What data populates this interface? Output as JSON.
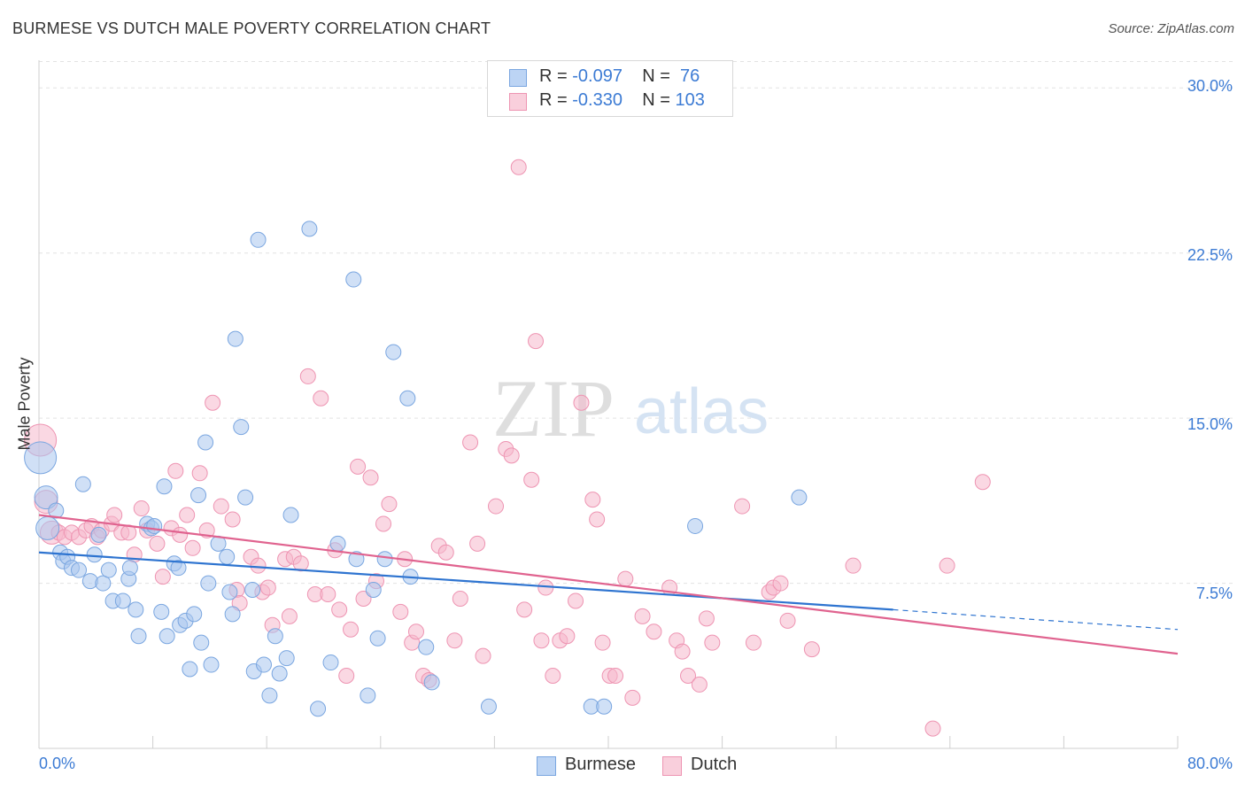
{
  "title": "BURMESE VS DUTCH MALE POVERTY CORRELATION CHART",
  "source": "Source: ZipAtlas.com",
  "watermark": {
    "zip": "ZIP",
    "atlas": "atlas"
  },
  "legend": {
    "rows": [
      {
        "r_label": "R = ",
        "r_value": "-0.097",
        "n_label": "N = ",
        "n_value": " 76"
      },
      {
        "r_label": "R = ",
        "r_value": "-0.330",
        "n_label": "N = ",
        "n_value": "103"
      }
    ]
  },
  "colors": {
    "burmese_fill": "#a9c7ef",
    "burmese_stroke": "#7aa6e0",
    "burmese_line": "#2e74d0",
    "dutch_fill": "#f5b8cc",
    "dutch_stroke": "#ee94b2",
    "dutch_line": "#e0638f",
    "axis_label": "#3c7bd4",
    "grid": "#e2e2e2"
  },
  "chart_data": {
    "type": "scatter",
    "title": "BURMESE VS DUTCH MALE POVERTY CORRELATION CHART",
    "xlabel": "",
    "ylabel": "Male Poverty",
    "xlim": [
      0,
      80
    ],
    "ylim": [
      0,
      31.5
    ],
    "x_tick_labels": [
      "0.0%",
      "80.0%"
    ],
    "y_tick_labels": [
      "7.5%",
      "15.0%",
      "22.5%",
      "30.0%"
    ],
    "y_ticks": [
      7.5,
      15.0,
      22.5,
      30.0
    ],
    "grid": true,
    "legend_position": "top-center",
    "bottom_legend": [
      "Burmese",
      "Dutch"
    ],
    "series": [
      {
        "name": "Burmese",
        "r": -0.097,
        "n": 76,
        "trend": {
          "x0": 0,
          "y0": 8.9,
          "x1": 60,
          "y1": 6.3,
          "dashed_to": 80,
          "dashed_y": 5.4
        },
        "points": [
          [
            0.1,
            13.2,
            3
          ],
          [
            0.5,
            11.4,
            2
          ],
          [
            0.6,
            10.0,
            2
          ],
          [
            1.2,
            10.8,
            1
          ],
          [
            1.5,
            8.9,
            1
          ],
          [
            1.7,
            8.5,
            1
          ],
          [
            2.0,
            8.7,
            1
          ],
          [
            2.3,
            8.2,
            1
          ],
          [
            2.8,
            8.1,
            1
          ],
          [
            3.1,
            12.0,
            1
          ],
          [
            3.6,
            7.6,
            1
          ],
          [
            3.9,
            8.8,
            1
          ],
          [
            4.2,
            9.7,
            1
          ],
          [
            4.5,
            7.5,
            1
          ],
          [
            4.9,
            8.1,
            1
          ],
          [
            5.2,
            6.7,
            1
          ],
          [
            5.9,
            6.7,
            1
          ],
          [
            6.3,
            7.7,
            1
          ],
          [
            6.4,
            8.2,
            1
          ],
          [
            6.8,
            6.3,
            1
          ],
          [
            7.0,
            5.1,
            1
          ],
          [
            7.6,
            10.2,
            1
          ],
          [
            7.9,
            10.0,
            1
          ],
          [
            8.1,
            10.1,
            1
          ],
          [
            8.6,
            6.2,
            1
          ],
          [
            8.8,
            11.9,
            1
          ],
          [
            9.0,
            5.1,
            1
          ],
          [
            9.5,
            8.4,
            1
          ],
          [
            9.8,
            8.2,
            1
          ],
          [
            9.9,
            5.6,
            1
          ],
          [
            10.3,
            5.8,
            1
          ],
          [
            10.6,
            3.6,
            1
          ],
          [
            10.9,
            6.1,
            1
          ],
          [
            11.2,
            11.5,
            1
          ],
          [
            11.4,
            4.8,
            1
          ],
          [
            11.7,
            13.9,
            1
          ],
          [
            11.9,
            7.5,
            1
          ],
          [
            12.1,
            3.8,
            1
          ],
          [
            12.6,
            9.3,
            1
          ],
          [
            13.2,
            8.7,
            1
          ],
          [
            13.4,
            7.1,
            1
          ],
          [
            13.6,
            6.1,
            1
          ],
          [
            13.8,
            18.6,
            1
          ],
          [
            14.2,
            14.6,
            1
          ],
          [
            14.5,
            11.4,
            1
          ],
          [
            15.0,
            7.2,
            1
          ],
          [
            15.1,
            3.5,
            1
          ],
          [
            15.4,
            23.1,
            1
          ],
          [
            15.8,
            3.8,
            1
          ],
          [
            16.2,
            2.4,
            1
          ],
          [
            16.6,
            5.1,
            1
          ],
          [
            16.9,
            3.4,
            1
          ],
          [
            17.4,
            4.1,
            1
          ],
          [
            17.7,
            10.6,
            1
          ],
          [
            19.0,
            23.6,
            1
          ],
          [
            19.6,
            1.8,
            1
          ],
          [
            20.5,
            3.9,
            1
          ],
          [
            21.0,
            9.3,
            1
          ],
          [
            22.1,
            21.3,
            1
          ],
          [
            22.3,
            8.6,
            1
          ],
          [
            23.1,
            2.4,
            1
          ],
          [
            23.5,
            7.2,
            1
          ],
          [
            23.8,
            5.0,
            1
          ],
          [
            24.3,
            8.6,
            1
          ],
          [
            24.9,
            18.0,
            1
          ],
          [
            25.9,
            15.9,
            1
          ],
          [
            26.1,
            7.8,
            1
          ],
          [
            27.2,
            4.6,
            1
          ],
          [
            27.6,
            3.0,
            1
          ],
          [
            31.6,
            1.9,
            1
          ],
          [
            38.8,
            1.9,
            1
          ],
          [
            39.7,
            1.9,
            1
          ],
          [
            46.1,
            10.1,
            1
          ],
          [
            53.4,
            11.4,
            1
          ]
        ]
      },
      {
        "name": "Dutch",
        "r": -0.33,
        "n": 103,
        "trend": {
          "x0": 0,
          "y0": 10.6,
          "x1": 80,
          "y1": 4.3
        },
        "points": [
          [
            0.1,
            14.0,
            3
          ],
          [
            0.5,
            11.2,
            2
          ],
          [
            0.9,
            9.8,
            2
          ],
          [
            1.4,
            9.8,
            1
          ],
          [
            1.8,
            9.6,
            1
          ],
          [
            2.3,
            9.8,
            1
          ],
          [
            2.8,
            9.6,
            1
          ],
          [
            3.3,
            9.9,
            1
          ],
          [
            3.7,
            10.1,
            1
          ],
          [
            4.1,
            9.6,
            1
          ],
          [
            4.4,
            9.9,
            1
          ],
          [
            5.1,
            10.2,
            1
          ],
          [
            5.3,
            10.6,
            1
          ],
          [
            5.8,
            9.8,
            1
          ],
          [
            6.3,
            9.8,
            1
          ],
          [
            6.7,
            8.8,
            1
          ],
          [
            7.2,
            10.9,
            1
          ],
          [
            7.6,
            9.9,
            1
          ],
          [
            8.3,
            9.3,
            1
          ],
          [
            8.7,
            7.8,
            1
          ],
          [
            9.3,
            10.0,
            1
          ],
          [
            9.6,
            12.6,
            1
          ],
          [
            9.9,
            9.7,
            1
          ],
          [
            10.4,
            10.6,
            1
          ],
          [
            10.8,
            9.1,
            1
          ],
          [
            11.3,
            12.5,
            1
          ],
          [
            11.8,
            9.9,
            1
          ],
          [
            12.2,
            15.7,
            1
          ],
          [
            12.8,
            11.0,
            1
          ],
          [
            13.6,
            10.4,
            1
          ],
          [
            13.9,
            7.2,
            1
          ],
          [
            14.1,
            6.6,
            1
          ],
          [
            14.9,
            8.7,
            1
          ],
          [
            15.4,
            8.3,
            1
          ],
          [
            15.7,
            7.1,
            1
          ],
          [
            16.1,
            7.3,
            1
          ],
          [
            16.4,
            5.6,
            1
          ],
          [
            17.3,
            8.6,
            1
          ],
          [
            17.6,
            6.0,
            1
          ],
          [
            17.9,
            8.7,
            1
          ],
          [
            18.4,
            8.4,
            1
          ],
          [
            18.9,
            16.9,
            1
          ],
          [
            19.4,
            7.0,
            1
          ],
          [
            19.8,
            15.9,
            1
          ],
          [
            20.3,
            7.0,
            1
          ],
          [
            20.8,
            9.0,
            1
          ],
          [
            21.1,
            6.3,
            1
          ],
          [
            21.6,
            3.3,
            1
          ],
          [
            21.9,
            5.4,
            1
          ],
          [
            22.4,
            12.8,
            1
          ],
          [
            22.8,
            6.8,
            1
          ],
          [
            23.3,
            12.3,
            1
          ],
          [
            23.7,
            7.6,
            1
          ],
          [
            24.2,
            10.2,
            1
          ],
          [
            24.6,
            11.1,
            1
          ],
          [
            25.4,
            6.2,
            1
          ],
          [
            25.7,
            8.6,
            1
          ],
          [
            26.2,
            4.8,
            1
          ],
          [
            26.5,
            5.3,
            1
          ],
          [
            27.0,
            3.3,
            1
          ],
          [
            27.4,
            3.1,
            1
          ],
          [
            28.1,
            9.2,
            1
          ],
          [
            28.6,
            8.9,
            1
          ],
          [
            29.2,
            4.9,
            1
          ],
          [
            29.6,
            6.8,
            1
          ],
          [
            30.3,
            13.9,
            1
          ],
          [
            30.8,
            9.3,
            1
          ],
          [
            31.2,
            4.2,
            1
          ],
          [
            32.1,
            11.0,
            1
          ],
          [
            32.8,
            13.6,
            1
          ],
          [
            33.2,
            13.3,
            1
          ],
          [
            33.7,
            26.4,
            1
          ],
          [
            34.1,
            6.3,
            1
          ],
          [
            34.6,
            12.2,
            1
          ],
          [
            34.9,
            18.5,
            1
          ],
          [
            35.3,
            4.9,
            1
          ],
          [
            35.6,
            7.3,
            1
          ],
          [
            36.1,
            3.3,
            1
          ],
          [
            36.6,
            4.9,
            1
          ],
          [
            37.1,
            5.1,
            1
          ],
          [
            37.7,
            6.7,
            1
          ],
          [
            38.1,
            15.7,
            1
          ],
          [
            38.9,
            11.3,
            1
          ],
          [
            39.2,
            10.4,
            1
          ],
          [
            39.6,
            4.8,
            1
          ],
          [
            40.1,
            3.3,
            1
          ],
          [
            40.5,
            3.3,
            1
          ],
          [
            41.2,
            7.7,
            1
          ],
          [
            41.7,
            2.3,
            1
          ],
          [
            42.4,
            6.0,
            1
          ],
          [
            43.2,
            5.3,
            1
          ],
          [
            44.3,
            7.3,
            1
          ],
          [
            44.8,
            4.9,
            1
          ],
          [
            45.2,
            4.4,
            1
          ],
          [
            45.6,
            3.3,
            1
          ],
          [
            46.4,
            2.9,
            1
          ],
          [
            46.9,
            5.9,
            1
          ],
          [
            47.3,
            4.8,
            1
          ],
          [
            49.4,
            11.0,
            1
          ],
          [
            50.2,
            4.8,
            1
          ],
          [
            51.3,
            7.1,
            1
          ],
          [
            51.6,
            7.3,
            1
          ],
          [
            52.1,
            7.5,
            1
          ],
          [
            52.6,
            5.8,
            1
          ],
          [
            54.3,
            4.5,
            1
          ],
          [
            57.2,
            8.3,
            1
          ],
          [
            62.8,
            0.9,
            1
          ],
          [
            63.8,
            8.3,
            1
          ],
          [
            66.3,
            12.1,
            1
          ]
        ]
      }
    ]
  }
}
